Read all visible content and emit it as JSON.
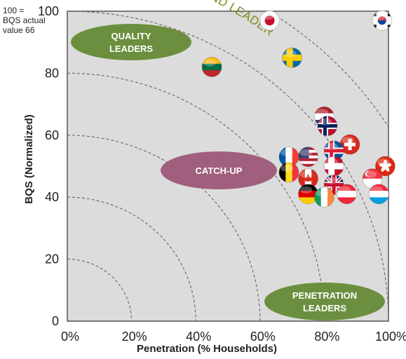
{
  "chart_data": {
    "type": "scatter",
    "xlabel": "Penetration (% Households)",
    "ylabel": "BQS (Normalized)",
    "xlim": [
      0,
      100
    ],
    "ylim": [
      0,
      100
    ],
    "x_ticks": [
      "0%",
      "20%",
      "40%",
      "60%",
      "80%",
      "100%"
    ],
    "y_ticks": [
      "0",
      "20",
      "40",
      "60",
      "80",
      "100"
    ],
    "grid": false,
    "background": "#dcdcdc",
    "note": "100 =\nBQS actual\nvalue 66",
    "curve_label": "BROADBAND LEADERS",
    "zones": [
      {
        "label": "QUALITY\nLEADERS",
        "color": "#6b8f3e"
      },
      {
        "label": "CATCH-UP",
        "color": "#a0607d"
      },
      {
        "label": "PENETRATION\nLEADERS",
        "color": "#6b8f3e"
      }
    ],
    "points": [
      {
        "flag": "japan",
        "x": 63,
        "y": 97
      },
      {
        "flag": "south-korea",
        "x": 98,
        "y": 97
      },
      {
        "flag": "sweden",
        "x": 70,
        "y": 85
      },
      {
        "flag": "lithuania",
        "x": 45,
        "y": 82
      },
      {
        "flag": "netherlands",
        "x": 80,
        "y": 66
      },
      {
        "flag": "norway",
        "x": 81,
        "y": 63
      },
      {
        "flag": "switzerland",
        "x": 88,
        "y": 57
      },
      {
        "flag": "hong-kong",
        "x": 99,
        "y": 50
      },
      {
        "flag": "usa",
        "x": 75,
        "y": 53
      },
      {
        "flag": "france",
        "x": 69,
        "y": 53
      },
      {
        "flag": "iceland",
        "x": 83,
        "y": 55
      },
      {
        "flag": "denmark",
        "x": 83,
        "y": 50
      },
      {
        "flag": "belgium",
        "x": 69,
        "y": 48
      },
      {
        "flag": "canada",
        "x": 75,
        "y": 46
      },
      {
        "flag": "singapore",
        "x": 95,
        "y": 46
      },
      {
        "flag": "luxembourg",
        "x": 97,
        "y": 41
      },
      {
        "flag": "germany",
        "x": 75,
        "y": 41
      },
      {
        "flag": "ireland",
        "x": 80,
        "y": 40
      },
      {
        "flag": "uk",
        "x": 83,
        "y": 44
      },
      {
        "flag": "austria",
        "x": 87,
        "y": 41
      }
    ]
  }
}
